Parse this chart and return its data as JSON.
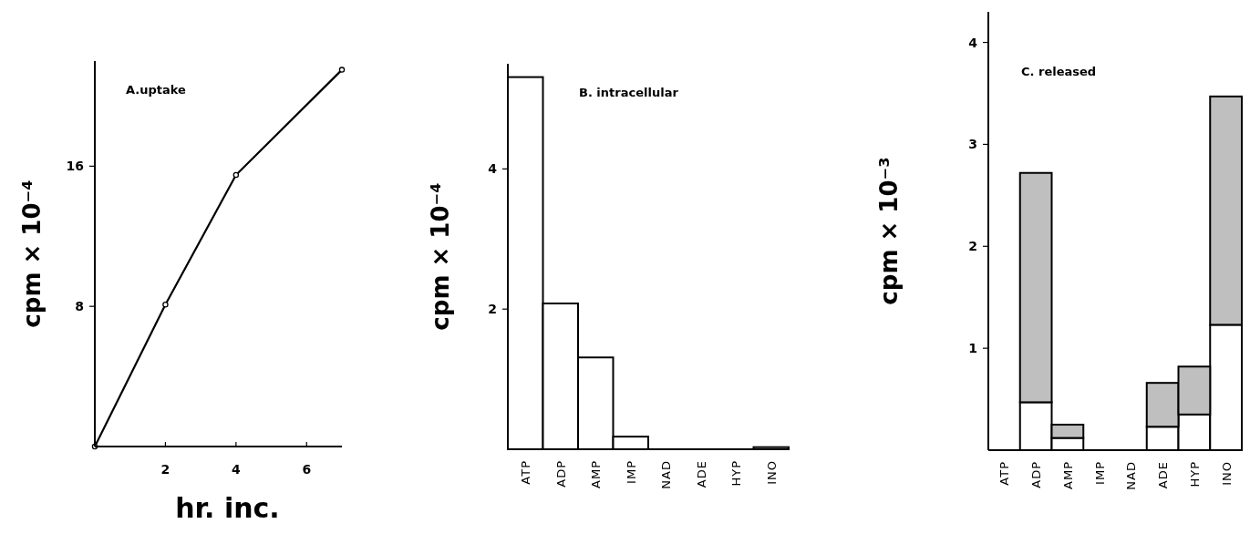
{
  "chart_data": [
    {
      "type": "line",
      "title": "A.uptake",
      "xlabel": "hr. inc.",
      "ylabel": "cpm × 10⁻⁴",
      "x": [
        0,
        2,
        4,
        7
      ],
      "xlim": [
        0,
        7
      ],
      "xticks": [
        2,
        4,
        6
      ],
      "ylim": [
        0,
        22
      ],
      "yticks": [
        8,
        16
      ],
      "marker": "circle",
      "series": [
        {
          "color": "#000000",
          "values": [
            0,
            8.1,
            15.5,
            21.5
          ]
        }
      ]
    },
    {
      "type": "bar",
      "title": "B. intracellular",
      "ylabel": "cpm × 10⁻⁴",
      "categories": [
        "ATP",
        "ADP",
        "AMP",
        "IMP",
        "NAD",
        "ADE",
        "HYP",
        "INO"
      ],
      "ylim": [
        0,
        5.5
      ],
      "yticks": [
        2,
        4
      ],
      "series": [
        {
          "color": "#ffffff",
          "values": [
            5.31,
            2.08,
            1.31,
            0.18,
            0,
            0,
            0,
            0.03
          ]
        }
      ]
    },
    {
      "type": "bar",
      "title": "C. released",
      "ylabel": "cpm × 10⁻³",
      "categories": [
        "ATP",
        "ADP",
        "AMP",
        "IMP",
        "NAD",
        "ADE",
        "HYP",
        "INO"
      ],
      "ylim": [
        0,
        4.3
      ],
      "yticks": [
        1,
        2,
        3,
        4
      ],
      "stacked": true,
      "series": [
        {
          "color": "#ffffff",
          "values": [
            0,
            0.47,
            0.12,
            0,
            0,
            0.23,
            0.35,
            1.23
          ]
        },
        {
          "color": "#bfbfbf",
          "values": [
            0,
            2.25,
            0.13,
            0,
            0,
            0.43,
            0.47,
            2.24
          ]
        }
      ]
    }
  ]
}
